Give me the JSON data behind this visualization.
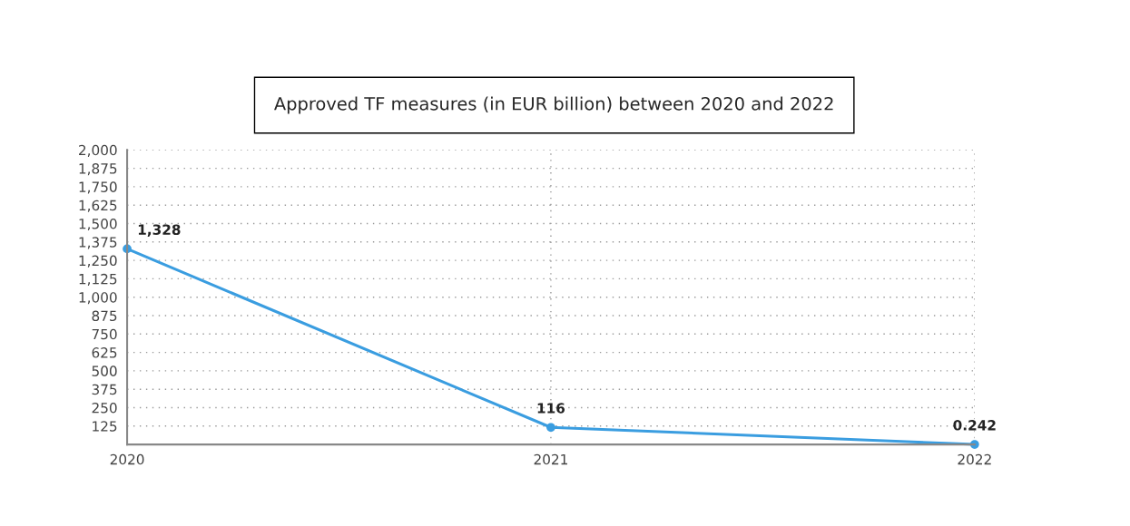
{
  "chart_data": {
    "type": "line",
    "title": "Approved TF measures (in EUR billion) between 2020 and 2022",
    "x": [
      2020,
      2021,
      2022
    ],
    "series": [
      {
        "color": "#3a9de0",
        "values": [
          1328,
          116,
          0.242
        ],
        "value_labels": [
          "1,328",
          "116",
          "0.242"
        ]
      }
    ],
    "xlim": [
      2020,
      2022
    ],
    "xticks": [
      2020,
      2021,
      2022
    ],
    "ylim": [
      0,
      2000
    ],
    "yticks": [
      {
        "value": 0,
        "label": null
      },
      {
        "value": 125,
        "label": "125"
      },
      {
        "value": 250,
        "label": "250"
      },
      {
        "value": 375,
        "label": "375"
      },
      {
        "value": 500,
        "label": "500"
      },
      {
        "value": 625,
        "label": "625"
      },
      {
        "value": 750,
        "label": "750"
      },
      {
        "value": 875,
        "label": "875"
      },
      {
        "value": 1000,
        "label": "1,000"
      },
      {
        "value": 1125,
        "label": "1,125"
      },
      {
        "value": 1250,
        "label": "1,250"
      },
      {
        "value": 1375,
        "label": "1,375"
      },
      {
        "value": 1500,
        "label": "1,500"
      },
      {
        "value": 1625,
        "label": "1,625"
      },
      {
        "value": 1750,
        "label": "1,750"
      },
      {
        "value": 1875,
        "label": "1,875"
      },
      {
        "value": 2000,
        "label": "2,000"
      }
    ],
    "grid": true,
    "marker": "circle",
    "line_style": "solid"
  }
}
